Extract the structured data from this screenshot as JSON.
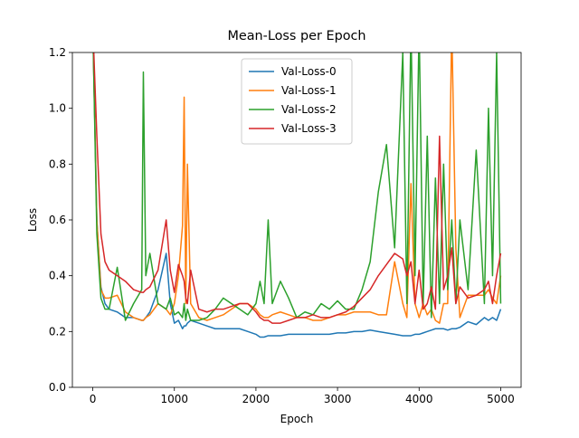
{
  "chart_data": {
    "type": "line",
    "title": "Mean-Loss per Epoch",
    "x_label": "Epoch",
    "y_label": "Loss",
    "x": [
      0,
      50,
      100,
      150,
      200,
      300,
      400,
      500,
      600,
      620,
      650,
      700,
      800,
      900,
      950,
      1000,
      1050,
      1100,
      1120,
      1140,
      1160,
      1200,
      1300,
      1400,
      1500,
      1600,
      1700,
      1800,
      1900,
      2000,
      2050,
      2100,
      2150,
      2200,
      2300,
      2400,
      2500,
      2600,
      2700,
      2800,
      2900,
      3000,
      3100,
      3200,
      3300,
      3400,
      3500,
      3600,
      3700,
      3800,
      3850,
      3900,
      3950,
      4000,
      4050,
      4100,
      4150,
      4200,
      4250,
      4300,
      4350,
      4400,
      4450,
      4500,
      4600,
      4700,
      4800,
      4850,
      4900,
      4950,
      5000
    ],
    "series": [
      {
        "name": "Val-Loss-0",
        "color": "#1f77b4",
        "values": [
          1.3,
          0.6,
          0.36,
          0.3,
          0.28,
          0.27,
          0.25,
          0.25,
          0.24,
          0.24,
          0.25,
          0.27,
          0.35,
          0.48,
          0.3,
          0.23,
          0.24,
          0.21,
          0.22,
          0.22,
          0.23,
          0.24,
          0.23,
          0.22,
          0.21,
          0.21,
          0.21,
          0.21,
          0.2,
          0.19,
          0.18,
          0.18,
          0.185,
          0.185,
          0.185,
          0.19,
          0.19,
          0.19,
          0.19,
          0.19,
          0.19,
          0.195,
          0.195,
          0.2,
          0.2,
          0.205,
          0.2,
          0.195,
          0.19,
          0.185,
          0.185,
          0.185,
          0.19,
          0.19,
          0.195,
          0.2,
          0.205,
          0.21,
          0.21,
          0.21,
          0.205,
          0.21,
          0.21,
          0.215,
          0.235,
          0.225,
          0.25,
          0.24,
          0.25,
          0.24,
          0.28
        ]
      },
      {
        "name": "Val-Loss-1",
        "color": "#ff7f0e",
        "values": [
          1.3,
          0.6,
          0.35,
          0.32,
          0.32,
          0.33,
          0.27,
          0.25,
          0.24,
          0.24,
          0.25,
          0.26,
          0.3,
          0.28,
          0.26,
          0.3,
          0.4,
          0.58,
          1.04,
          0.3,
          0.8,
          0.3,
          0.25,
          0.24,
          0.25,
          0.26,
          0.28,
          0.3,
          0.3,
          0.28,
          0.26,
          0.25,
          0.25,
          0.26,
          0.27,
          0.26,
          0.25,
          0.25,
          0.24,
          0.24,
          0.25,
          0.26,
          0.26,
          0.27,
          0.27,
          0.27,
          0.26,
          0.26,
          0.45,
          0.3,
          0.25,
          0.73,
          0.3,
          0.25,
          0.3,
          0.26,
          0.28,
          0.24,
          0.23,
          0.3,
          0.3,
          1.3,
          0.5,
          0.25,
          0.33,
          0.33,
          0.33,
          0.35,
          0.32,
          0.3,
          0.4
        ]
      },
      {
        "name": "Val-Loss-2",
        "color": "#2ca02c",
        "values": [
          1.3,
          0.55,
          0.32,
          0.28,
          0.28,
          0.43,
          0.24,
          0.3,
          0.35,
          1.13,
          0.4,
          0.48,
          0.3,
          0.28,
          0.32,
          0.26,
          0.27,
          0.25,
          0.3,
          0.24,
          0.28,
          0.24,
          0.24,
          0.25,
          0.28,
          0.32,
          0.3,
          0.28,
          0.26,
          0.3,
          0.38,
          0.3,
          0.6,
          0.3,
          0.38,
          0.32,
          0.25,
          0.27,
          0.26,
          0.3,
          0.28,
          0.31,
          0.28,
          0.28,
          0.35,
          0.45,
          0.7,
          0.87,
          0.5,
          1.2,
          0.3,
          1.3,
          0.4,
          1.3,
          0.3,
          0.9,
          0.25,
          0.75,
          0.3,
          0.8,
          0.35,
          0.6,
          0.3,
          0.6,
          0.35,
          0.85,
          0.3,
          1.0,
          0.4,
          1.2,
          0.3
        ]
      },
      {
        "name": "Val-Loss-3",
        "color": "#d62728",
        "values": [
          1.3,
          0.9,
          0.55,
          0.45,
          0.42,
          0.4,
          0.38,
          0.35,
          0.34,
          0.34,
          0.35,
          0.36,
          0.42,
          0.6,
          0.42,
          0.34,
          0.44,
          0.4,
          0.38,
          0.32,
          0.3,
          0.42,
          0.28,
          0.27,
          0.28,
          0.28,
          0.29,
          0.3,
          0.3,
          0.27,
          0.25,
          0.24,
          0.24,
          0.23,
          0.23,
          0.24,
          0.25,
          0.25,
          0.26,
          0.25,
          0.25,
          0.26,
          0.27,
          0.29,
          0.32,
          0.35,
          0.4,
          0.44,
          0.48,
          0.46,
          0.4,
          0.45,
          0.3,
          0.42,
          0.28,
          0.3,
          0.36,
          0.28,
          0.9,
          0.35,
          0.4,
          0.5,
          0.3,
          0.36,
          0.32,
          0.33,
          0.35,
          0.38,
          0.3,
          0.4,
          0.48
        ]
      }
    ],
    "xlim": [
      -250,
      5250
    ],
    "ylim": [
      0,
      1.2
    ],
    "xticks": [
      0,
      1000,
      2000,
      3000,
      4000,
      5000
    ],
    "yticks": [
      {
        "value": 0,
        "label": "0.0"
      },
      0.2,
      0.4,
      0.6,
      0.8,
      {
        "value": 1,
        "label": "1.0"
      },
      1.2
    ],
    "legend": "upper center"
  }
}
